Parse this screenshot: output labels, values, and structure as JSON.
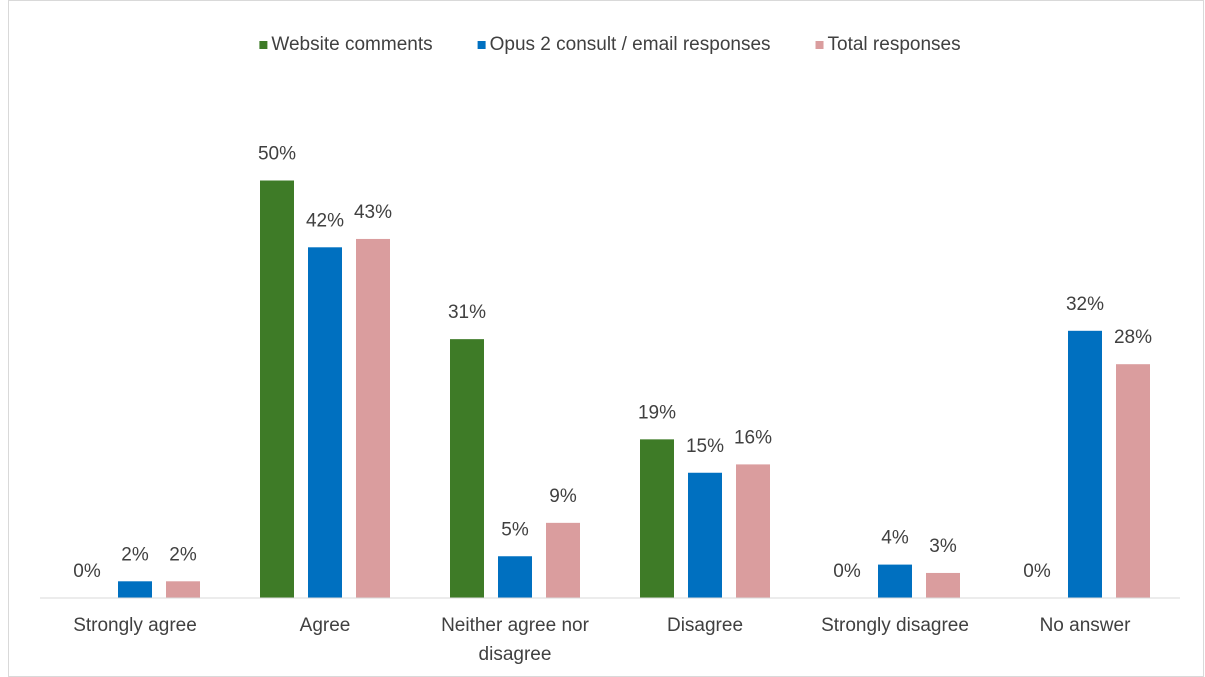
{
  "chart_data": {
    "type": "bar",
    "categories": [
      "Strongly agree",
      "Agree",
      "Neither agree nor disagree",
      "Disagree",
      "Strongly disagree",
      "No answer"
    ],
    "series": [
      {
        "name": "Website comments",
        "color": "#3e7b27",
        "values": [
          0,
          50,
          31,
          19,
          0,
          0
        ],
        "value_labels": [
          "0%",
          "50%",
          "31%",
          "19%",
          "0%",
          "0%"
        ]
      },
      {
        "name": "Opus 2 consult / email responses",
        "color": "#0070c0",
        "values": [
          2,
          42,
          5,
          15,
          4,
          32
        ],
        "value_labels": [
          "2%",
          "42%",
          "5%",
          "15%",
          "4%",
          "32%"
        ]
      },
      {
        "name": "Total responses",
        "color": "#da9d9e",
        "values": [
          2,
          43,
          9,
          16,
          3,
          28
        ],
        "value_labels": [
          "2%",
          "43%",
          "9%",
          "16%",
          "3%",
          "28%"
        ]
      }
    ],
    "ylim": [
      0,
      60
    ],
    "legend": "top"
  }
}
